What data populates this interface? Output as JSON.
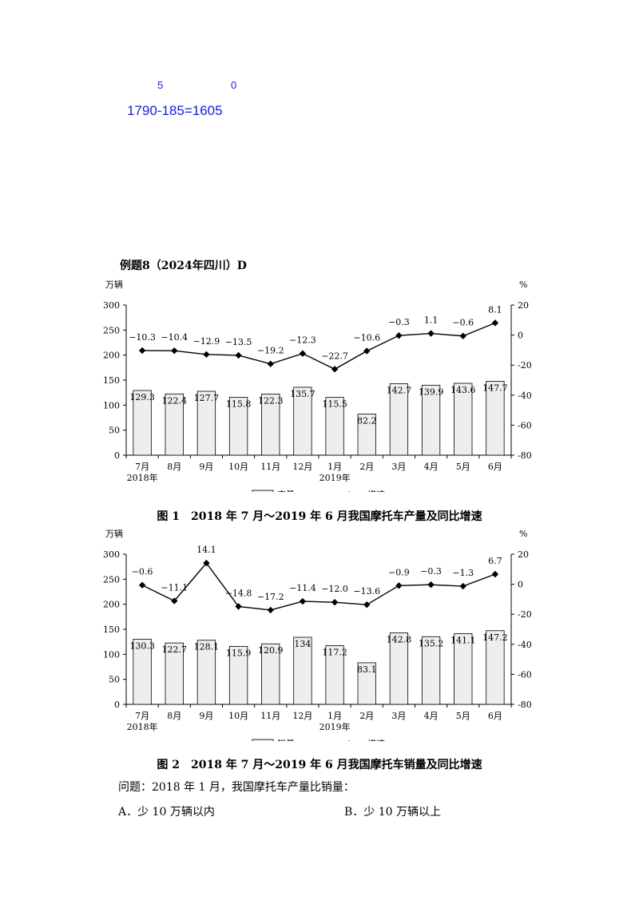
{
  "annotations": {
    "digit_a": "5",
    "digit_b": "0",
    "calc": "1790-185=1605"
  },
  "example_title": "例题8（2024年四川）D",
  "question": "问题：2018 年 1 月，我国摩托车产量比销量：",
  "options": {
    "a": "A．少 10 万辆以内",
    "b": "B．少 10 万辆以上"
  },
  "chart_data": [
    {
      "type": "bar",
      "title": "图 1　2018 年 7 月～2019 年 6 月我国摩托车产量及同比增速",
      "ylabel_left": "万辆",
      "ylabel_right": "%",
      "categories": [
        "7月",
        "8月",
        "9月",
        "10月",
        "11月",
        "12月",
        "1月",
        "2月",
        "3月",
        "4月",
        "5月",
        "6月"
      ],
      "year_labels": {
        "0": "2018年",
        "6": "2019年"
      },
      "ylim_left": [
        0,
        300
      ],
      "yticks_left": [
        0,
        50,
        100,
        150,
        200,
        250,
        300
      ],
      "ylim_right": [
        -80,
        20
      ],
      "yticks_right": [
        -80,
        -60,
        -40,
        -20,
        0,
        20
      ],
      "series": [
        {
          "name": "产量",
          "type": "bar",
          "axis": "left",
          "values": [
            129.3,
            122.4,
            127.7,
            115.8,
            122.3,
            135.7,
            115.5,
            82.2,
            142.7,
            139.9,
            143.6,
            147.7
          ],
          "labels": [
            "129.3",
            "122.4",
            "127.7",
            "115.8",
            "122.3",
            "135.7",
            "115.5",
            "82.2",
            "142.7",
            "139.9",
            "143.6",
            "147.7"
          ]
        },
        {
          "name": "增速",
          "type": "line",
          "axis": "right",
          "values": [
            -10.3,
            -10.4,
            -12.9,
            -13.5,
            -19.2,
            -12.3,
            -22.7,
            -10.6,
            -0.3,
            1.1,
            -0.6,
            8.1
          ],
          "labels": [
            "−10.3",
            "−10.4",
            "−12.9",
            "−13.5",
            "−19.2",
            "−12.3",
            "−22.7",
            "−10.6",
            "−0.3",
            "1.1",
            "−0.6",
            "8.1"
          ]
        }
      ],
      "legend_position": "bottom-center",
      "grid": false
    },
    {
      "type": "bar",
      "title": "图 2　2018 年 7 月～2019 年 6 月我国摩托车销量及同比增速",
      "ylabel_left": "万辆",
      "ylabel_right": "%",
      "categories": [
        "7月",
        "8月",
        "9月",
        "10月",
        "11月",
        "12月",
        "1月",
        "2月",
        "3月",
        "4月",
        "5月",
        "6月"
      ],
      "year_labels": {
        "0": "2018年",
        "6": "2019年"
      },
      "ylim_left": [
        0,
        300
      ],
      "yticks_left": [
        0,
        50,
        100,
        150,
        200,
        250,
        300
      ],
      "ylim_right": [
        -80,
        20
      ],
      "yticks_right": [
        -80,
        -60,
        -40,
        -20,
        0,
        20
      ],
      "series": [
        {
          "name": "销量",
          "type": "bar",
          "axis": "left",
          "values": [
            130.3,
            122.7,
            128.1,
            115.9,
            120.9,
            134,
            117.2,
            83.1,
            142.8,
            135.2,
            141.1,
            147.2
          ],
          "labels": [
            "130.3",
            "122.7",
            "128.1",
            "115.9",
            "120.9",
            "134",
            "117.2",
            "83.1",
            "142.8",
            "135.2",
            "141.1",
            "147.2"
          ]
        },
        {
          "name": "增速",
          "type": "line",
          "axis": "right",
          "values": [
            -0.6,
            -11.1,
            14.1,
            -14.8,
            -17.2,
            -11.4,
            -12.0,
            -13.6,
            -0.9,
            -0.3,
            -1.3,
            6.7
          ],
          "labels": [
            "−0.6",
            "−11.1",
            "14.1",
            "−14.8",
            "−17.2",
            "−11.4",
            "−12.0",
            "−13.6",
            "−0.9",
            "−0.3",
            "−1.3",
            "6.7"
          ]
        }
      ],
      "legend_position": "bottom-center",
      "grid": false
    }
  ]
}
